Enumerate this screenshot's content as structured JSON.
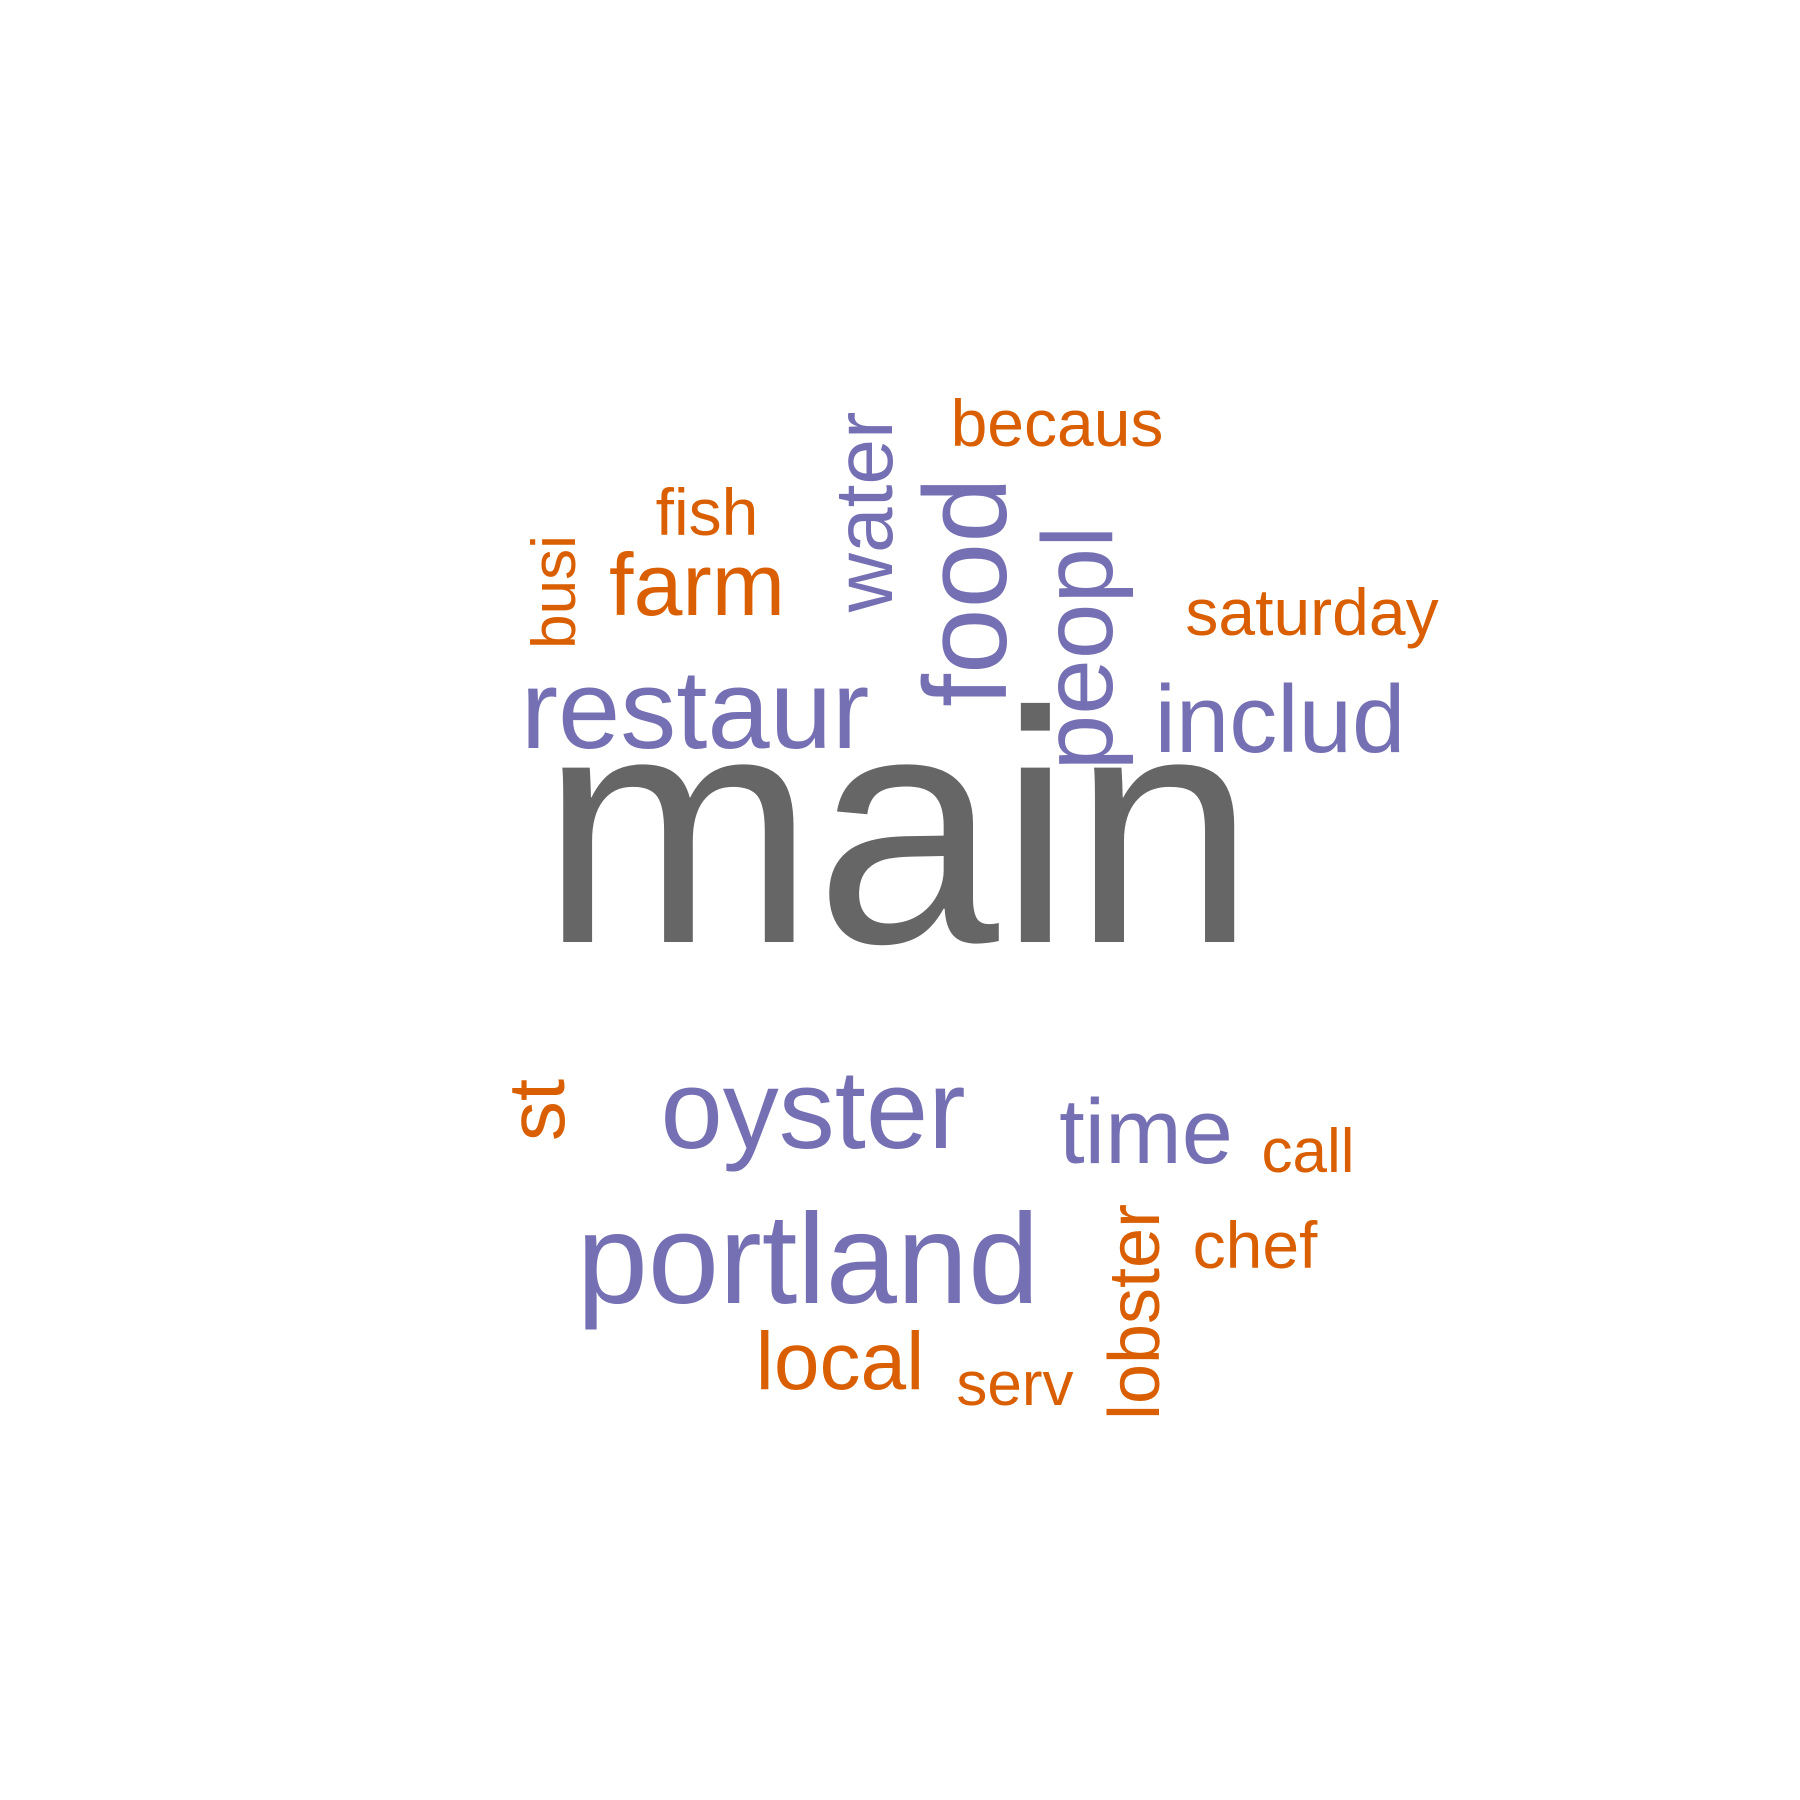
{
  "colors": {
    "dominant": "#666666",
    "purple": "#7570B3",
    "orange": "#D95F02",
    "background": "#ffffff"
  },
  "words": [
    {
      "key": "main",
      "text": "main",
      "color": "#666666"
    },
    {
      "key": "portland",
      "text": "portland",
      "color": "#7570B3"
    },
    {
      "key": "oyster",
      "text": "oyster",
      "color": "#7570B3"
    },
    {
      "key": "restaur",
      "text": "restaur",
      "color": "#7570B3"
    },
    {
      "key": "food",
      "text": "food",
      "color": "#7570B3"
    },
    {
      "key": "peopl",
      "text": "peopl",
      "color": "#7570B3"
    },
    {
      "key": "includ",
      "text": "includ",
      "color": "#7570B3"
    },
    {
      "key": "time",
      "text": "time",
      "color": "#7570B3"
    },
    {
      "key": "water",
      "text": "water",
      "color": "#7570B3"
    },
    {
      "key": "farm",
      "text": "farm",
      "color": "#D95F02"
    },
    {
      "key": "local",
      "text": "local",
      "color": "#D95F02"
    },
    {
      "key": "lobster",
      "text": "lobster",
      "color": "#D95F02"
    },
    {
      "key": "st",
      "text": "st",
      "color": "#D95F02"
    },
    {
      "key": "chef",
      "text": "chef",
      "color": "#D95F02"
    },
    {
      "key": "saturday",
      "text": "saturday",
      "color": "#D95F02"
    },
    {
      "key": "becaus",
      "text": "becaus",
      "color": "#D95F02"
    },
    {
      "key": "fish",
      "text": "fish",
      "color": "#D95F02"
    },
    {
      "key": "call",
      "text": "call",
      "color": "#D95F02"
    },
    {
      "key": "serv",
      "text": "serv",
      "color": "#D95F02"
    },
    {
      "key": "busi",
      "text": "busi",
      "color": "#D95F02"
    }
  ]
}
